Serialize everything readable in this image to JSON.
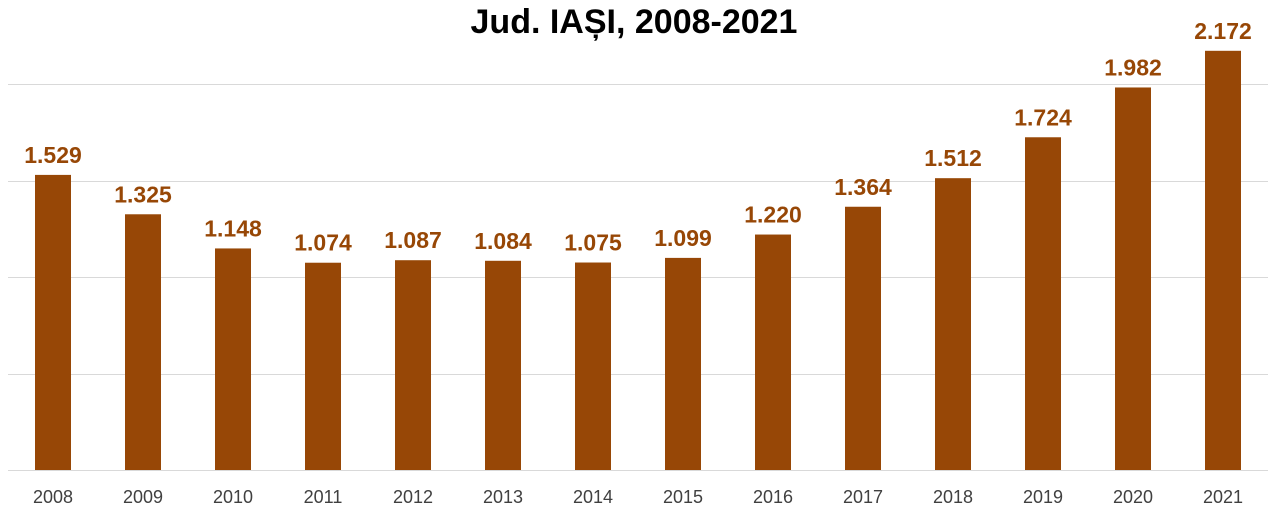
{
  "chart_data": {
    "type": "bar",
    "title": "Jud. IAȘI, 2008-2021",
    "xlabel": "",
    "ylabel": "",
    "categories": [
      "2008",
      "2009",
      "2010",
      "2011",
      "2012",
      "2013",
      "2014",
      "2015",
      "2016",
      "2017",
      "2018",
      "2019",
      "2020",
      "2021"
    ],
    "values": [
      1529,
      1325,
      1148,
      1074,
      1087,
      1084,
      1075,
      1099,
      1220,
      1364,
      1512,
      1724,
      1982,
      2172
    ],
    "value_labels": [
      "1.529",
      "1.325",
      "1.148",
      "1.074",
      "1.087",
      "1.084",
      "1.075",
      "1.099",
      "1.220",
      "1.364",
      "1.512",
      "1.724",
      "1.982",
      "2.172"
    ],
    "ylim": [
      0,
      2000
    ],
    "gridlines": [
      0,
      500,
      1000,
      1500,
      2000
    ],
    "grid": true,
    "show_y_axis_labels": false,
    "legend": "none",
    "bar_color": "#974706",
    "label_color": "#974706",
    "title_color": "#000000",
    "tick_color": "#404040",
    "grid_color": "#d9d9d9"
  }
}
